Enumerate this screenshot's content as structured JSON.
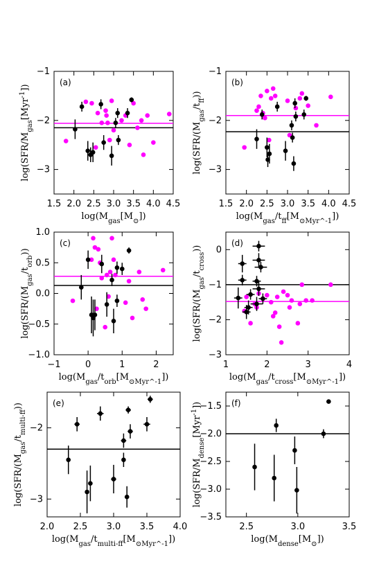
{
  "colors": {
    "black": "#000000",
    "magenta": "#ff00ff"
  },
  "chart_data": [
    {
      "type": "scatter",
      "panel_label": "(a)",
      "xlabel": "log(M_gas[M_⊙])",
      "ylabel": "log(SFR/M_gas[Myr^-1])",
      "xlim": [
        1.5,
        4.5
      ],
      "ylim": [
        -3.5,
        -1.0
      ],
      "xticks": [
        1.5,
        2.0,
        2.5,
        3.0,
        3.5,
        4.0,
        4.5
      ],
      "yticks": [
        -3,
        -2,
        -1
      ],
      "hlines": [
        {
          "color": "black",
          "y": -2.15
        },
        {
          "color": "magenta",
          "y": -2.06
        }
      ],
      "series": [
        {
          "color": "magenta",
          "points": [
            [
              1.8,
              -2.42
            ],
            [
              2.3,
              -1.62
            ],
            [
              2.45,
              -1.65
            ],
            [
              2.55,
              -2.55
            ],
            [
              2.6,
              -1.85
            ],
            [
              2.7,
              -2.05
            ],
            [
              2.8,
              -1.8
            ],
            [
              2.82,
              -1.9
            ],
            [
              2.85,
              -2.05
            ],
            [
              2.9,
              -2.4
            ],
            [
              2.95,
              -1.6
            ],
            [
              3.0,
              -2.2
            ],
            [
              3.2,
              -2.0
            ],
            [
              3.3,
              -1.9
            ],
            [
              3.4,
              -2.5
            ],
            [
              3.5,
              -1.65
            ],
            [
              3.6,
              -2.15
            ],
            [
              3.7,
              -2.0
            ],
            [
              3.75,
              -2.7
            ],
            [
              3.85,
              -1.9
            ],
            [
              4.0,
              -2.45
            ],
            [
              4.4,
              -1.87
            ]
          ]
        },
        {
          "color": "black",
          "points": [
            {
              "x": 2.03,
              "y": -2.18,
              "xerr": 0,
              "yerr": 0.2
            },
            {
              "x": 2.2,
              "y": -1.72,
              "xerr": 0.05,
              "yerr": 0.1
            },
            {
              "x": 2.35,
              "y": -2.62,
              "xerr": 0,
              "yerr": 0.2
            },
            {
              "x": 2.42,
              "y": -2.7,
              "xerr": 0,
              "yerr": 0.15
            },
            {
              "x": 2.48,
              "y": -2.65,
              "xerr": 0,
              "yerr": 0.2
            },
            {
              "x": 2.68,
              "y": -1.67,
              "xerr": 0,
              "yerr": 0.1
            },
            {
              "x": 2.75,
              "y": -2.45,
              "xerr": 0,
              "yerr": 0.15
            },
            {
              "x": 2.95,
              "y": -2.72,
              "xerr": 0,
              "yerr": 0.2
            },
            {
              "x": 3.05,
              "y": -2.05,
              "xerr": 0,
              "yerr": 0.1
            },
            {
              "x": 3.1,
              "y": -1.85,
              "xerr": 0,
              "yerr": 0.1
            },
            {
              "x": 3.12,
              "y": -2.4,
              "xerr": 0,
              "yerr": 0.1
            },
            {
              "x": 3.35,
              "y": -1.85,
              "xerr": 0,
              "yerr": 0.1
            },
            {
              "x": 3.45,
              "y": -1.58,
              "xerr": 0.05,
              "yerr": 0.05
            }
          ]
        }
      ]
    },
    {
      "type": "scatter",
      "panel_label": "(b)",
      "xlabel": "log(M_gas/t_ff[M_⊙Myr^-1])",
      "ylabel": "log(SFR/(M_gas/t_ff))",
      "xlim": [
        1.5,
        4.5
      ],
      "ylim": [
        -3.5,
        -1.0
      ],
      "xticks": [
        1.5,
        2.0,
        2.5,
        3.0,
        3.5,
        4.0,
        4.5
      ],
      "yticks": [
        -3,
        -2,
        -1
      ],
      "hlines": [
        {
          "color": "black",
          "y": -2.23
        },
        {
          "color": "magenta",
          "y": -1.9
        }
      ],
      "series": [
        {
          "color": "magenta",
          "points": [
            [
              1.95,
              -2.55
            ],
            [
              2.25,
              -1.8
            ],
            [
              2.3,
              -1.72
            ],
            [
              2.35,
              -1.5
            ],
            [
              2.4,
              -1.85
            ],
            [
              2.45,
              -1.95
            ],
            [
              2.5,
              -1.4
            ],
            [
              2.55,
              -2.4
            ],
            [
              2.6,
              -1.55
            ],
            [
              2.65,
              -1.35
            ],
            [
              2.7,
              -1.5
            ],
            [
              3.0,
              -1.6
            ],
            [
              3.05,
              -2.3
            ],
            [
              3.2,
              -1.75
            ],
            [
              3.3,
              -1.55
            ],
            [
              3.35,
              -1.45
            ],
            [
              3.5,
              -1.7
            ],
            [
              3.7,
              -2.1
            ],
            [
              4.05,
              -1.52
            ]
          ]
        },
        {
          "color": "black",
          "points": [
            {
              "x": 2.25,
              "y": -2.38,
              "xerr": 0,
              "yerr": 0.2
            },
            {
              "x": 2.38,
              "y": -1.88,
              "xerr": 0,
              "yerr": 0.1
            },
            {
              "x": 2.5,
              "y": -2.55,
              "xerr": 0,
              "yerr": 0.2
            },
            {
              "x": 2.52,
              "y": -2.8,
              "xerr": 0,
              "yerr": 0.15
            },
            {
              "x": 2.56,
              "y": -2.68,
              "xerr": 0,
              "yerr": 0.2
            },
            {
              "x": 2.75,
              "y": -1.72,
              "xerr": 0,
              "yerr": 0.1
            },
            {
              "x": 2.95,
              "y": -2.62,
              "xerr": 0,
              "yerr": 0.2
            },
            {
              "x": 3.1,
              "y": -2.1,
              "xerr": 0,
              "yerr": 0.1
            },
            {
              "x": 3.12,
              "y": -2.35,
              "xerr": 0,
              "yerr": 0.1
            },
            {
              "x": 3.15,
              "y": -2.88,
              "xerr": 0,
              "yerr": 0.15
            },
            {
              "x": 3.18,
              "y": -1.65,
              "xerr": 0,
              "yerr": 0.1
            },
            {
              "x": 3.2,
              "y": -1.92,
              "xerr": 0,
              "yerr": 0.1
            },
            {
              "x": 3.4,
              "y": -1.88,
              "xerr": 0,
              "yerr": 0.1
            },
            {
              "x": 3.45,
              "y": -1.55,
              "xerr": 0.05,
              "yerr": 0.05
            }
          ]
        }
      ]
    },
    {
      "type": "scatter",
      "panel_label": "(c)",
      "xlabel": "log(M_gas/t_orb[M_⊙Myr^-1])",
      "ylabel": "log(SFR/(M_gas/t_orb))",
      "xlim": [
        -1,
        2.5
      ],
      "ylim": [
        -1.0,
        1.0
      ],
      "xticks": [
        -1,
        0,
        1,
        2
      ],
      "yticks": [
        -1.0,
        -0.5,
        0.0,
        0.5,
        1.0
      ],
      "hlines": [
        {
          "color": "black",
          "y": 0.13
        },
        {
          "color": "magenta",
          "y": 0.28
        }
      ],
      "series": [
        {
          "color": "magenta",
          "points": [
            [
              -0.45,
              -0.12
            ],
            [
              0.1,
              0.55
            ],
            [
              0.15,
              0.9
            ],
            [
              0.2,
              0.75
            ],
            [
              0.25,
              -0.25
            ],
            [
              0.3,
              0.72
            ],
            [
              0.35,
              0.5
            ],
            [
              0.4,
              0.25
            ],
            [
              0.5,
              -0.55
            ],
            [
              0.55,
              0.3
            ],
            [
              0.6,
              -0.05
            ],
            [
              0.65,
              0.35
            ],
            [
              0.7,
              0.9
            ],
            [
              0.75,
              0.55
            ],
            [
              0.8,
              0.3
            ],
            [
              1.1,
              -0.15
            ],
            [
              1.2,
              0.2
            ],
            [
              1.3,
              -0.4
            ],
            [
              1.5,
              0.35
            ],
            [
              1.6,
              -0.1
            ],
            [
              1.7,
              -0.25
            ],
            [
              2.2,
              0.38
            ]
          ]
        },
        {
          "color": "black",
          "points": [
            {
              "x": -0.2,
              "y": 0.1,
              "xerr": 0,
              "yerr": 0.2
            },
            {
              "x": 0.0,
              "y": 0.55,
              "xerr": 0,
              "yerr": 0.15
            },
            {
              "x": 0.1,
              "y": -0.35,
              "xerr": 0,
              "yerr": 0.3
            },
            {
              "x": 0.15,
              "y": -0.4,
              "xerr": 0,
              "yerr": 0.3
            },
            {
              "x": 0.2,
              "y": -0.35,
              "xerr": 0,
              "yerr": 0.25
            },
            {
              "x": 0.4,
              "y": 0.48,
              "xerr": 0,
              "yerr": 0.15
            },
            {
              "x": 0.55,
              "y": -0.18,
              "xerr": 0,
              "yerr": 0.2
            },
            {
              "x": 0.7,
              "y": 0.22,
              "xerr": 0,
              "yerr": 0.1
            },
            {
              "x": 0.75,
              "y": -0.45,
              "xerr": 0,
              "yerr": 0.2
            },
            {
              "x": 0.85,
              "y": 0.42,
              "xerr": 0,
              "yerr": 0.1
            },
            {
              "x": 0.85,
              "y": -0.12,
              "xerr": 0,
              "yerr": 0.1
            },
            {
              "x": 1.0,
              "y": 0.4,
              "xerr": 0,
              "yerr": 0.1
            },
            {
              "x": 1.2,
              "y": 0.7,
              "xerr": 0.05,
              "yerr": 0.05
            }
          ]
        }
      ]
    },
    {
      "type": "scatter",
      "panel_label": "(d)",
      "xlabel": "log(M_gas/t_cross[M_⊙Myr^-1])",
      "ylabel": "log(SFR/(M_gas/t_cross))",
      "xlim": [
        1,
        4
      ],
      "ylim": [
        -3.0,
        0.5
      ],
      "xticks": [
        1,
        2,
        3,
        4
      ],
      "yticks": [
        -3,
        -2,
        -1,
        0
      ],
      "hlines": [
        {
          "color": "black",
          "y": -1.0
        },
        {
          "color": "magenta",
          "y": -1.48
        }
      ],
      "series": [
        {
          "color": "magenta",
          "points": [
            [
              1.45,
              -1.75
            ],
            [
              1.5,
              -1.35
            ],
            [
              1.6,
              -2.1
            ],
            [
              1.7,
              -1.55
            ],
            [
              1.75,
              -1.65
            ],
            [
              1.8,
              -1.25
            ],
            [
              1.9,
              -1.4
            ],
            [
              2.0,
              -1.3
            ],
            [
              2.1,
              -1.5
            ],
            [
              2.15,
              -1.9
            ],
            [
              2.2,
              -1.8
            ],
            [
              2.25,
              -1.35
            ],
            [
              2.3,
              -2.2
            ],
            [
              2.35,
              -2.65
            ],
            [
              2.4,
              -1.2
            ],
            [
              2.5,
              -1.3
            ],
            [
              2.55,
              -1.65
            ],
            [
              2.6,
              -1.45
            ],
            [
              2.75,
              -2.1
            ],
            [
              2.8,
              -1.55
            ],
            [
              2.85,
              -1.0
            ],
            [
              2.95,
              -1.45
            ],
            [
              3.1,
              -1.45
            ],
            [
              3.55,
              -1.0
            ]
          ]
        },
        {
          "color": "black",
          "points": [
            {
              "x": 1.3,
              "y": -1.38,
              "xerr": 0.1,
              "yerr": 0.3
            },
            {
              "x": 1.4,
              "y": -0.4,
              "xerr": 0.1,
              "yerr": 0.25
            },
            {
              "x": 1.4,
              "y": -0.87,
              "xerr": 0.1,
              "yerr": 0.15
            },
            {
              "x": 1.5,
              "y": -1.78,
              "xerr": 0.1,
              "yerr": 0.2
            },
            {
              "x": 1.55,
              "y": -1.65,
              "xerr": 0.1,
              "yerr": 0.2
            },
            {
              "x": 1.6,
              "y": -1.28,
              "xerr": 0.1,
              "yerr": 0.15
            },
            {
              "x": 1.75,
              "y": -0.9,
              "xerr": 0.1,
              "yerr": 0.15
            },
            {
              "x": 1.8,
              "y": 0.1,
              "xerr": 0.15,
              "yerr": 0.15
            },
            {
              "x": 1.8,
              "y": -0.3,
              "xerr": 0.15,
              "yerr": 0.2
            },
            {
              "x": 1.85,
              "y": -0.5,
              "xerr": 0.15,
              "yerr": 0.15
            },
            {
              "x": 1.8,
              "y": -1.12,
              "xerr": 0.15,
              "yerr": 0.2
            },
            {
              "x": 1.75,
              "y": -1.55,
              "xerr": 0.15,
              "yerr": 0.2
            },
            {
              "x": 1.9,
              "y": -1.4,
              "xerr": 0.1,
              "yerr": 0.15
            }
          ]
        }
      ]
    },
    {
      "type": "scatter",
      "panel_label": "(e)",
      "xlabel": "log(M_gas/t_multi-ff[M_⊙Myr^-1])",
      "ylabel": "log(SFR/(M_gas/t_multi-ff))",
      "xlim": [
        2.0,
        4.0
      ],
      "ylim": [
        -3.25,
        -1.5
      ],
      "xticks": [
        2.0,
        2.5,
        3.0,
        3.5,
        4.0
      ],
      "yticks": [
        -3,
        -2
      ],
      "hlines": [
        {
          "color": "black",
          "y": -2.3
        }
      ],
      "series": [
        {
          "color": "black",
          "points": [
            {
              "x": 2.32,
              "y": -2.45,
              "xerr": 0.03,
              "yerr": 0.2
            },
            {
              "x": 2.45,
              "y": -1.95,
              "xerr": 0.04,
              "yerr": 0.1
            },
            {
              "x": 2.6,
              "y": -2.9,
              "xerr": 0.03,
              "yerr": 0.3
            },
            {
              "x": 2.65,
              "y": -2.78,
              "xerr": 0.03,
              "yerr": 0.25
            },
            {
              "x": 2.8,
              "y": -1.8,
              "xerr": 0.05,
              "yerr": 0.1
            },
            {
              "x": 3.0,
              "y": -2.72,
              "xerr": 0.04,
              "yerr": 0.2
            },
            {
              "x": 3.15,
              "y": -2.18,
              "xerr": 0.04,
              "yerr": 0.1
            },
            {
              "x": 3.15,
              "y": -2.45,
              "xerr": 0.03,
              "yerr": 0.1
            },
            {
              "x": 3.2,
              "y": -2.97,
              "xerr": 0.03,
              "yerr": 0.15
            },
            {
              "x": 3.22,
              "y": -1.75,
              "xerr": 0.04,
              "yerr": 0.05
            },
            {
              "x": 3.25,
              "y": -2.05,
              "xerr": 0.04,
              "yerr": 0.1
            },
            {
              "x": 3.5,
              "y": -1.95,
              "xerr": 0.05,
              "yerr": 0.1
            },
            {
              "x": 3.55,
              "y": -1.6,
              "xerr": 0.04,
              "yerr": 0.05
            }
          ]
        }
      ]
    },
    {
      "type": "scatter",
      "panel_label": "(f)",
      "xlabel": "log(M_dense[M_⊙])",
      "ylabel": "log(SFR/M_dense[Myr^-1])",
      "xlim": [
        2.3,
        3.5
      ],
      "ylim": [
        -3.5,
        -1.25
      ],
      "xticks": [
        2.5,
        3.0,
        3.5
      ],
      "yticks": [
        -3.5,
        -3.0,
        -2.5,
        -2.0,
        -1.5
      ],
      "hlines": [
        {
          "color": "black",
          "y": -2.0
        }
      ],
      "series": [
        {
          "color": "black",
          "points": [
            {
              "x": 2.58,
              "y": -2.6,
              "xerr": 0,
              "yerr": 0.42
            },
            {
              "x": 2.77,
              "y": -2.8,
              "xerr": 0,
              "yerr": 0.42
            },
            {
              "x": 2.79,
              "y": -1.85,
              "xerr": 0,
              "yerr": 0.12
            },
            {
              "x": 2.97,
              "y": -2.3,
              "xerr": 0,
              "yerr": 0.25
            },
            {
              "x": 2.99,
              "y": -3.02,
              "xerr": 0,
              "yerr": 0.42
            },
            {
              "x": 3.25,
              "y": -2.0,
              "xerr": 0.02,
              "yerr": 0.08
            },
            {
              "x": 3.3,
              "y": -1.42,
              "xerr": 0,
              "yerr": 0
            }
          ]
        }
      ]
    }
  ]
}
